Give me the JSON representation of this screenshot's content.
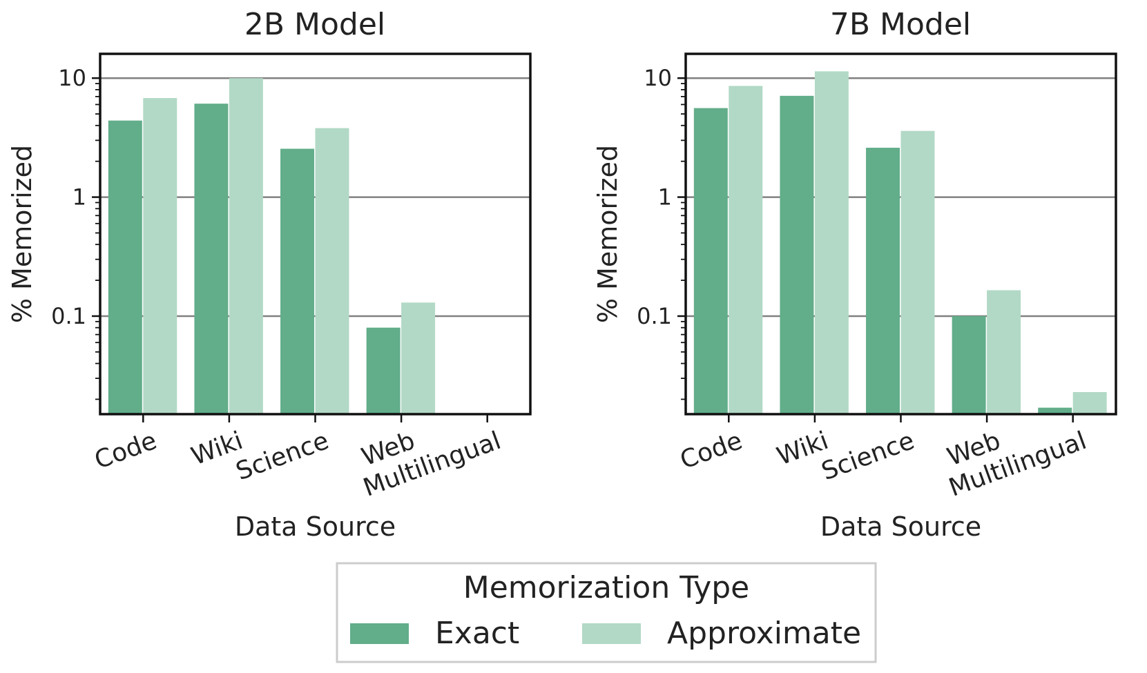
{
  "chart_data": [
    {
      "type": "bar",
      "title": "2B Model",
      "xlabel": "Data Source",
      "ylabel": "% Memorized",
      "yscale": "log",
      "ylim": [
        0.015,
        16
      ],
      "yticks": [
        0.1,
        1,
        10
      ],
      "ytick_labels": [
        "0.1",
        "1",
        "10"
      ],
      "grid": true,
      "categories": [
        "Code",
        "Wiki",
        "Science",
        "Web",
        "Multilingual"
      ],
      "series": [
        {
          "name": "Exact",
          "values": [
            4.4,
            6.1,
            2.55,
            0.08,
            null
          ]
        },
        {
          "name": "Approximate",
          "values": [
            6.8,
            10.0,
            3.8,
            0.13,
            null
          ]
        }
      ]
    },
    {
      "type": "bar",
      "title": "7B Model",
      "xlabel": "Data Source",
      "ylabel": "% Memorized",
      "yscale": "log",
      "ylim": [
        0.015,
        16
      ],
      "yticks": [
        0.1,
        1,
        10
      ],
      "ytick_labels": [
        "0.1",
        "1",
        "10"
      ],
      "grid": true,
      "categories": [
        "Code",
        "Wiki",
        "Science",
        "Web",
        "Multilingual"
      ],
      "series": [
        {
          "name": "Exact",
          "values": [
            5.6,
            7.1,
            2.6,
            0.1,
            0.017
          ]
        },
        {
          "name": "Approximate",
          "values": [
            8.6,
            11.4,
            3.6,
            0.165,
            0.023
          ]
        }
      ]
    }
  ],
  "legend": {
    "title": "Memorization Type",
    "items": [
      {
        "label": "Exact",
        "color": "#62ad8a"
      },
      {
        "label": "Approximate",
        "color": "#b2d9c6"
      }
    ]
  },
  "colors": {
    "exact": "#62ad8a",
    "approximate": "#b2d9c6",
    "grid": "#808080",
    "axis": "#111111"
  }
}
